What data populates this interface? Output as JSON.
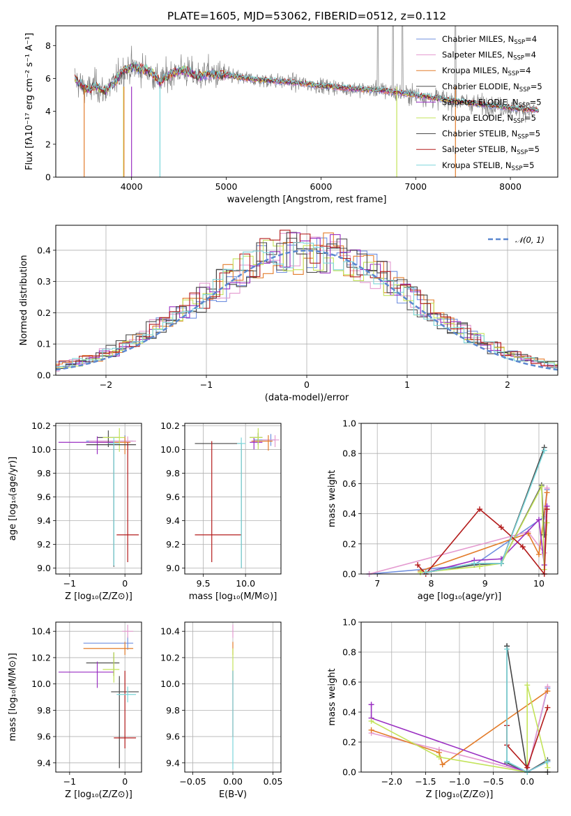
{
  "figure": {
    "title": "PLATE=1605, MJD=53062, FIBERID=0512, z=0.112"
  },
  "colors": {
    "c1": "#6f8fdf",
    "c2": "#e49ad0",
    "c3": "#e37c2a",
    "c4": "#4f4f4f",
    "c5": "#9a2fc2",
    "c6": "#c3e35a",
    "c7": "#444444",
    "c8": "#b31b1b",
    "c9": "#7bd6da",
    "data": "#808080",
    "grid": "#b0b0b0"
  },
  "legend": {
    "items": [
      {
        "base": "Chabrier MILES, N",
        "sub": "SSP",
        "tail": "=4",
        "ck": "c1"
      },
      {
        "base": "Salpeter MILES, N",
        "sub": "SSP",
        "tail": "=4",
        "ck": "c2"
      },
      {
        "base": "Kroupa MILES, N",
        "sub": "SSP",
        "tail": "=4",
        "ck": "c3"
      },
      {
        "base": "Chabrier ELODIE, N",
        "sub": "SSP",
        "tail": "=5",
        "ck": "c4"
      },
      {
        "base": "Salpeter ELODIE, N",
        "sub": "SSP",
        "tail": "=5",
        "ck": "c5"
      },
      {
        "base": "Kroupa ELODIE, N",
        "sub": "SSP",
        "tail": "=5",
        "ck": "c6"
      },
      {
        "base": "Chabrier STELIB, N",
        "sub": "SSP",
        "tail": "=5",
        "ck": "c7"
      },
      {
        "base": "Salpeter STELIB, N",
        "sub": "SSP",
        "tail": "=5",
        "ck": "c8"
      },
      {
        "base": "Kroupa STELIB, N",
        "sub": "SSP",
        "tail": "=5",
        "ck": "c9"
      }
    ]
  },
  "chart_data": [
    {
      "id": "spectrum",
      "type": "line",
      "xlabel": "wavelength [Angstrom, rest frame]",
      "ylabel": "Flux [fλ10⁻¹⁷ erg cm⁻² s⁻¹ A⁻¹]",
      "xlim": [
        3200,
        8500
      ],
      "ylim": [
        0,
        9.2
      ],
      "xticks": [
        4000,
        5000,
        6000,
        7000,
        8000
      ],
      "yticks": [
        0,
        2,
        4,
        6,
        8
      ],
      "model_x": [
        3400,
        3480,
        3560,
        3620,
        3700,
        3800,
        3900,
        4000,
        4100,
        4200,
        4300,
        4400,
        4500,
        4600,
        4700,
        4800,
        4900,
        5000,
        5200,
        5400,
        5600,
        5800,
        6000,
        6200,
        6400,
        6600,
        6800,
        7000,
        7200,
        7400,
        7600,
        7800,
        8000,
        8100,
        8200,
        8300
      ],
      "model_y": [
        6.0,
        5.5,
        5.3,
        5.6,
        5.2,
        5.6,
        6.4,
        6.7,
        6.6,
        6.4,
        5.8,
        6.2,
        6.5,
        6.4,
        6.1,
        6.3,
        6.2,
        6.2,
        6.0,
        5.9,
        5.8,
        5.7,
        5.55,
        5.45,
        5.35,
        5.3,
        5.15,
        5.0,
        4.8,
        4.65,
        4.5,
        4.35,
        4.2,
        4.15,
        4.1,
        4.05
      ]
    },
    {
      "id": "residuals",
      "type": "histogram",
      "xlabel": "(data-model)/error",
      "ylabel": "Normed distribution",
      "xlim": [
        -2.5,
        2.5
      ],
      "ylim": [
        0,
        0.48
      ],
      "xticks": [
        -2,
        -1,
        0,
        1,
        2
      ],
      "yticks": [
        0.0,
        0.1,
        0.2,
        0.3,
        0.4
      ],
      "normal_label": "𝒩(0, 1)",
      "bin_width": 0.1
    },
    {
      "id": "age-vs-Z",
      "type": "scatter",
      "xlabel": "Z [log₁₀(Z/Z⊙)]",
      "ylabel": "age  [log₁₀(age/yr)]",
      "xlim": [
        -1.25,
        0.3
      ],
      "ylim": [
        8.95,
        10.22
      ],
      "xticks": [
        -1,
        0
      ],
      "yticks": [
        9.0,
        9.2,
        9.4,
        9.6,
        9.8,
        10.0,
        10.2
      ],
      "points": [
        {
          "ck": "c1",
          "x": 0.0,
          "y": 10.07,
          "xerr": [
            0.7,
            0.15
          ],
          "yerr": [
            0.05,
            0.05
          ]
        },
        {
          "ck": "c2",
          "x": 0.05,
          "y": 10.07,
          "xerr": [
            0.7,
            0.15
          ],
          "yerr": [
            0.06,
            0.04
          ]
        },
        {
          "ck": "c3",
          "x": 0.0,
          "y": 10.06,
          "xerr": [
            0.5,
            0.1
          ],
          "yerr": [
            0.1,
            0.05
          ]
        },
        {
          "ck": "c4",
          "x": -0.3,
          "y": 10.1,
          "xerr": [
            0.2,
            0.2
          ],
          "yerr": [
            0.08,
            0.06
          ]
        },
        {
          "ck": "c5",
          "x": -0.5,
          "y": 10.06,
          "xerr": [
            0.7,
            0.3
          ],
          "yerr": [
            0.1,
            0.05
          ]
        },
        {
          "ck": "c6",
          "x": -0.1,
          "y": 10.1,
          "xerr": [
            0.3,
            0.1
          ],
          "yerr": [
            0.12,
            0.08
          ]
        },
        {
          "ck": "c7",
          "x": -0.2,
          "y": 10.04,
          "xerr": [
            0.5,
            0.4
          ],
          "yerr": [
            1.03,
            0.0
          ]
        },
        {
          "ck": "c8",
          "x": 0.05,
          "y": 9.28,
          "xerr": [
            0.2,
            0.2
          ],
          "yerr": [
            0.23,
            0.78
          ]
        },
        {
          "ck": "c9",
          "x": -0.2,
          "y": 10.05,
          "xerr": [
            0.1,
            0.1
          ],
          "yerr": [
            1.03,
            0.05
          ]
        }
      ]
    },
    {
      "id": "age-vs-mass",
      "type": "scatter",
      "xlabel": "mass [log₁₀(M/M⊙)]",
      "ylabel": "",
      "xlim": [
        9.28,
        10.42
      ],
      "ylim": [
        8.95,
        10.22
      ],
      "xticks": [
        9.5,
        10.0
      ],
      "yticks": [
        9.0,
        9.2,
        9.4,
        9.6,
        9.8,
        10.0,
        10.2
      ],
      "points": [
        {
          "ck": "c1",
          "x": 10.3,
          "y": 10.08,
          "xerr": [
            0.2,
            0.05
          ],
          "yerr": [
            0.05,
            0.05
          ]
        },
        {
          "ck": "c2",
          "x": 10.35,
          "y": 10.08,
          "xerr": [
            0.15,
            0.05
          ],
          "yerr": [
            0.06,
            0.04
          ]
        },
        {
          "ck": "c3",
          "x": 10.27,
          "y": 10.07,
          "xerr": [
            0.2,
            0.05
          ],
          "yerr": [
            0.08,
            0.05
          ]
        },
        {
          "ck": "c4",
          "x": 10.15,
          "y": 10.1,
          "xerr": [
            0.1,
            0.05
          ],
          "yerr": [
            0.06,
            0.04
          ]
        },
        {
          "ck": "c5",
          "x": 10.1,
          "y": 10.06,
          "xerr": [
            0.05,
            0.1
          ],
          "yerr": [
            0.06,
            0.04
          ]
        },
        {
          "ck": "c6",
          "x": 10.15,
          "y": 10.1,
          "xerr": [
            0.1,
            0.05
          ],
          "yerr": [
            0.1,
            0.08
          ]
        },
        {
          "ck": "c7",
          "x": 9.95,
          "y": 10.05,
          "xerr": [
            0.55,
            0.0
          ],
          "yerr": [
            1.05,
            0.0
          ]
        },
        {
          "ck": "c8",
          "x": 9.6,
          "y": 9.28,
          "xerr": [
            0.2,
            0.35
          ],
          "yerr": [
            0.23,
            0.79
          ]
        },
        {
          "ck": "c9",
          "x": 9.95,
          "y": 10.05,
          "xerr": [
            0.05,
            0.05
          ],
          "yerr": [
            1.05,
            0.05
          ]
        }
      ]
    },
    {
      "id": "weight-vs-age",
      "type": "line",
      "xlabel": "age  [log₁₀(age/yr)]",
      "ylabel": "mass weight",
      "xlim": [
        6.7,
        10.35
      ],
      "ylim": [
        0,
        1.0
      ],
      "xticks": [
        7,
        8,
        9,
        10
      ],
      "yticks": [
        0.0,
        0.2,
        0.4,
        0.6,
        0.8,
        1.0
      ],
      "series": [
        {
          "ck": "c1",
          "x": [
            6.85,
            8.8,
            10.1,
            10.15
          ],
          "y": [
            0.0,
            0.06,
            0.38,
            0.56
          ]
        },
        {
          "ck": "c2",
          "x": [
            6.85,
            9.8,
            10.1,
            10.15
          ],
          "y": [
            0.0,
            0.28,
            0.14,
            0.57
          ]
        },
        {
          "ck": "c3",
          "x": [
            7.8,
            9.8,
            10.0,
            10.15
          ],
          "y": [
            0.02,
            0.27,
            0.13,
            0.54
          ]
        },
        {
          "ck": "c4",
          "x": [
            7.9,
            8.8,
            9.3,
            10.05,
            10.1
          ],
          "y": [
            0.01,
            0.06,
            0.07,
            0.59,
            0.26
          ]
        },
        {
          "ck": "c5",
          "x": [
            7.9,
            8.8,
            9.3,
            10.0,
            10.1,
            10.15
          ],
          "y": [
            0.01,
            0.09,
            0.1,
            0.36,
            0.06,
            0.45
          ]
        },
        {
          "ck": "c6",
          "x": [
            7.8,
            8.9,
            9.3,
            10.05,
            10.1,
            10.15
          ],
          "y": [
            0.01,
            0.05,
            0.07,
            0.58,
            0.03,
            0.34
          ]
        },
        {
          "ck": "c7",
          "x": [
            7.9,
            8.8,
            9.3,
            10.1
          ],
          "y": [
            0.01,
            0.07,
            0.07,
            0.84
          ]
        },
        {
          "ck": "c8",
          "x": [
            7.75,
            7.9,
            8.9,
            9.3,
            9.7,
            10.1,
            10.15
          ],
          "y": [
            0.06,
            0.0,
            0.43,
            0.31,
            0.18,
            0.0,
            0.43
          ]
        },
        {
          "ck": "c9",
          "x": [
            7.9,
            8.8,
            9.3,
            10.1
          ],
          "y": [
            0.01,
            0.07,
            0.07,
            0.82
          ]
        }
      ]
    },
    {
      "id": "mass-vs-Z",
      "type": "scatter",
      "xlabel": "Z [log₁₀(Z/Z⊙)]",
      "ylabel": "mass [log₁₀(M/M⊙)]",
      "xlim": [
        -1.25,
        0.3
      ],
      "ylim": [
        9.33,
        10.47
      ],
      "xticks": [
        -1,
        0
      ],
      "yticks": [
        9.4,
        9.6,
        9.8,
        10.0,
        10.2,
        10.4
      ],
      "points": [
        {
          "ck": "c1",
          "x": 0.05,
          "y": 10.31,
          "xerr": [
            0.8,
            0.1
          ],
          "yerr": [
            0.05,
            0.05
          ]
        },
        {
          "ck": "c2",
          "x": 0.05,
          "y": 10.4,
          "xerr": [
            0.1,
            0.1
          ],
          "yerr": [
            0.05,
            0.05
          ]
        },
        {
          "ck": "c3",
          "x": 0.0,
          "y": 10.27,
          "xerr": [
            0.75,
            0.15
          ],
          "yerr": [
            0.05,
            0.05
          ]
        },
        {
          "ck": "c4",
          "x": -0.2,
          "y": 10.16,
          "xerr": [
            0.5,
            0.1
          ],
          "yerr": [
            0.1,
            0.08
          ]
        },
        {
          "ck": "c5",
          "x": -0.5,
          "y": 10.09,
          "xerr": [
            0.7,
            0.3
          ],
          "yerr": [
            0.12,
            0.08
          ]
        },
        {
          "ck": "c6",
          "x": -0.2,
          "y": 10.11,
          "xerr": [
            0.2,
            0.1
          ],
          "yerr": [
            0.1,
            0.13
          ]
        },
        {
          "ck": "c7",
          "x": -0.1,
          "y": 9.94,
          "xerr": [
            0.15,
            0.35
          ],
          "yerr": [
            0.58,
            0.12
          ]
        },
        {
          "ck": "c8",
          "x": 0.0,
          "y": 9.59,
          "xerr": [
            0.2,
            0.2
          ],
          "yerr": [
            0.08,
            0.51
          ]
        },
        {
          "ck": "c9",
          "x": 0.05,
          "y": 9.92,
          "xerr": [
            0.2,
            0.15
          ],
          "yerr": [
            0.06,
            0.06
          ]
        }
      ]
    },
    {
      "id": "mass-vs-EBV",
      "type": "scatter",
      "xlabel": "E(B-V)",
      "ylabel": "",
      "xlim": [
        -0.06,
        0.06
      ],
      "ylim": [
        9.33,
        10.47
      ],
      "xticks": [
        -0.05,
        0.0,
        0.05
      ],
      "yticks": [
        9.4,
        9.6,
        9.8,
        10.0,
        10.2,
        10.4
      ],
      "points": [
        {
          "ck": "c2",
          "x": 0.0,
          "y": 10.4,
          "xerr": [
            0,
            0
          ],
          "yerr": [
            0.05,
            0.05
          ]
        },
        {
          "ck": "c3",
          "x": 0.0,
          "y": 10.27,
          "xerr": [
            0,
            0
          ],
          "yerr": [
            0.05,
            0.05
          ]
        },
        {
          "ck": "c6",
          "x": 0.0,
          "y": 10.15,
          "xerr": [
            0,
            0
          ],
          "yerr": [
            0.12,
            0.12
          ]
        },
        {
          "ck": "c8",
          "x": 0.0,
          "y": 9.9,
          "xerr": [
            0,
            0
          ],
          "yerr": [
            0.3,
            0.2
          ]
        },
        {
          "ck": "c9",
          "x": 0.0,
          "y": 9.8,
          "xerr": [
            0,
            0
          ],
          "yerr": [
            0.45,
            0.3
          ]
        }
      ]
    },
    {
      "id": "weight-vs-Z",
      "type": "line",
      "xlabel": "Z [log₁₀(Z/Z⊙)]",
      "ylabel": "mass weight",
      "xlim": [
        -2.45,
        0.45
      ],
      "ylim": [
        0,
        1.0
      ],
      "xticks": [
        -2.0,
        -1.5,
        -1.0,
        -0.5,
        0.0
      ],
      "yticks": [
        0.0,
        0.2,
        0.4,
        0.6,
        0.8,
        1.0
      ],
      "series": [
        {
          "ck": "c1",
          "x": [
            -0.3,
            0.0,
            0.3
          ],
          "y": [
            0.07,
            0.0,
            0.56
          ]
        },
        {
          "ck": "c2",
          "x": [
            -2.3,
            -1.3,
            0.0,
            0.3
          ],
          "y": [
            0.26,
            0.15,
            0.0,
            0.57
          ]
        },
        {
          "ck": "c3",
          "x": [
            -2.3,
            -1.3,
            -1.25,
            0.3
          ],
          "y": [
            0.28,
            0.13,
            0.05,
            0.54
          ]
        },
        {
          "ck": "c4",
          "x": [
            -0.3,
            -0.3,
            0.0,
            0.3
          ],
          "y": [
            0.84,
            0.06,
            0.0,
            0.08
          ]
        },
        {
          "ck": "c5",
          "x": [
            -2.3,
            -2.3,
            0.0,
            0.3
          ],
          "y": [
            0.45,
            0.36,
            0.0,
            0.07
          ]
        },
        {
          "ck": "c6",
          "x": [
            -2.3,
            -1.3,
            0.0,
            0.0,
            0.3
          ],
          "y": [
            0.34,
            0.1,
            0.0,
            0.58,
            0.03
          ]
        },
        {
          "ck": "c7",
          "x": [
            -0.3,
            0.0,
            0.3
          ],
          "y": [
            0.84,
            0.0,
            0.0
          ]
        },
        {
          "ck": "c8",
          "x": [
            -0.3,
            -0.3,
            0.0,
            0.3
          ],
          "y": [
            0.31,
            0.18,
            0.03,
            0.43
          ]
        },
        {
          "ck": "c9",
          "x": [
            -0.3,
            -0.3,
            0.0,
            0.3
          ],
          "y": [
            0.82,
            0.07,
            0.0,
            0.07
          ]
        }
      ]
    }
  ]
}
